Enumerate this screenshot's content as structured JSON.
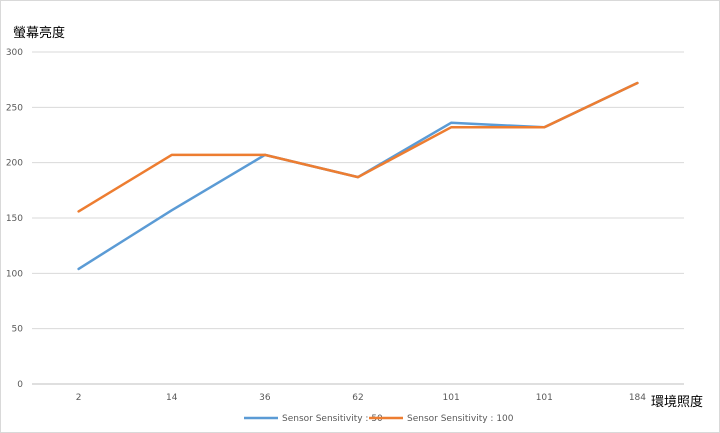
{
  "chart_data": {
    "type": "line",
    "ylabel": "螢幕亮度",
    "xlabel": "環境照度",
    "categories": [
      "2",
      "14",
      "36",
      "62",
      "101",
      "101",
      "184"
    ],
    "ylim": [
      0,
      300
    ],
    "yticks": [
      0,
      50,
      100,
      150,
      200,
      250,
      300
    ],
    "grid": true,
    "legend_position": "bottom",
    "series": [
      {
        "name": "Sensor Sensitivity : 50",
        "color": "#5b9bd5",
        "values": [
          104,
          157,
          207,
          187,
          236,
          232,
          272
        ]
      },
      {
        "name": "Sensor Sensitivity : 100",
        "color": "#ed7d31",
        "values": [
          156,
          207,
          207,
          187,
          232,
          232,
          272
        ]
      }
    ]
  }
}
